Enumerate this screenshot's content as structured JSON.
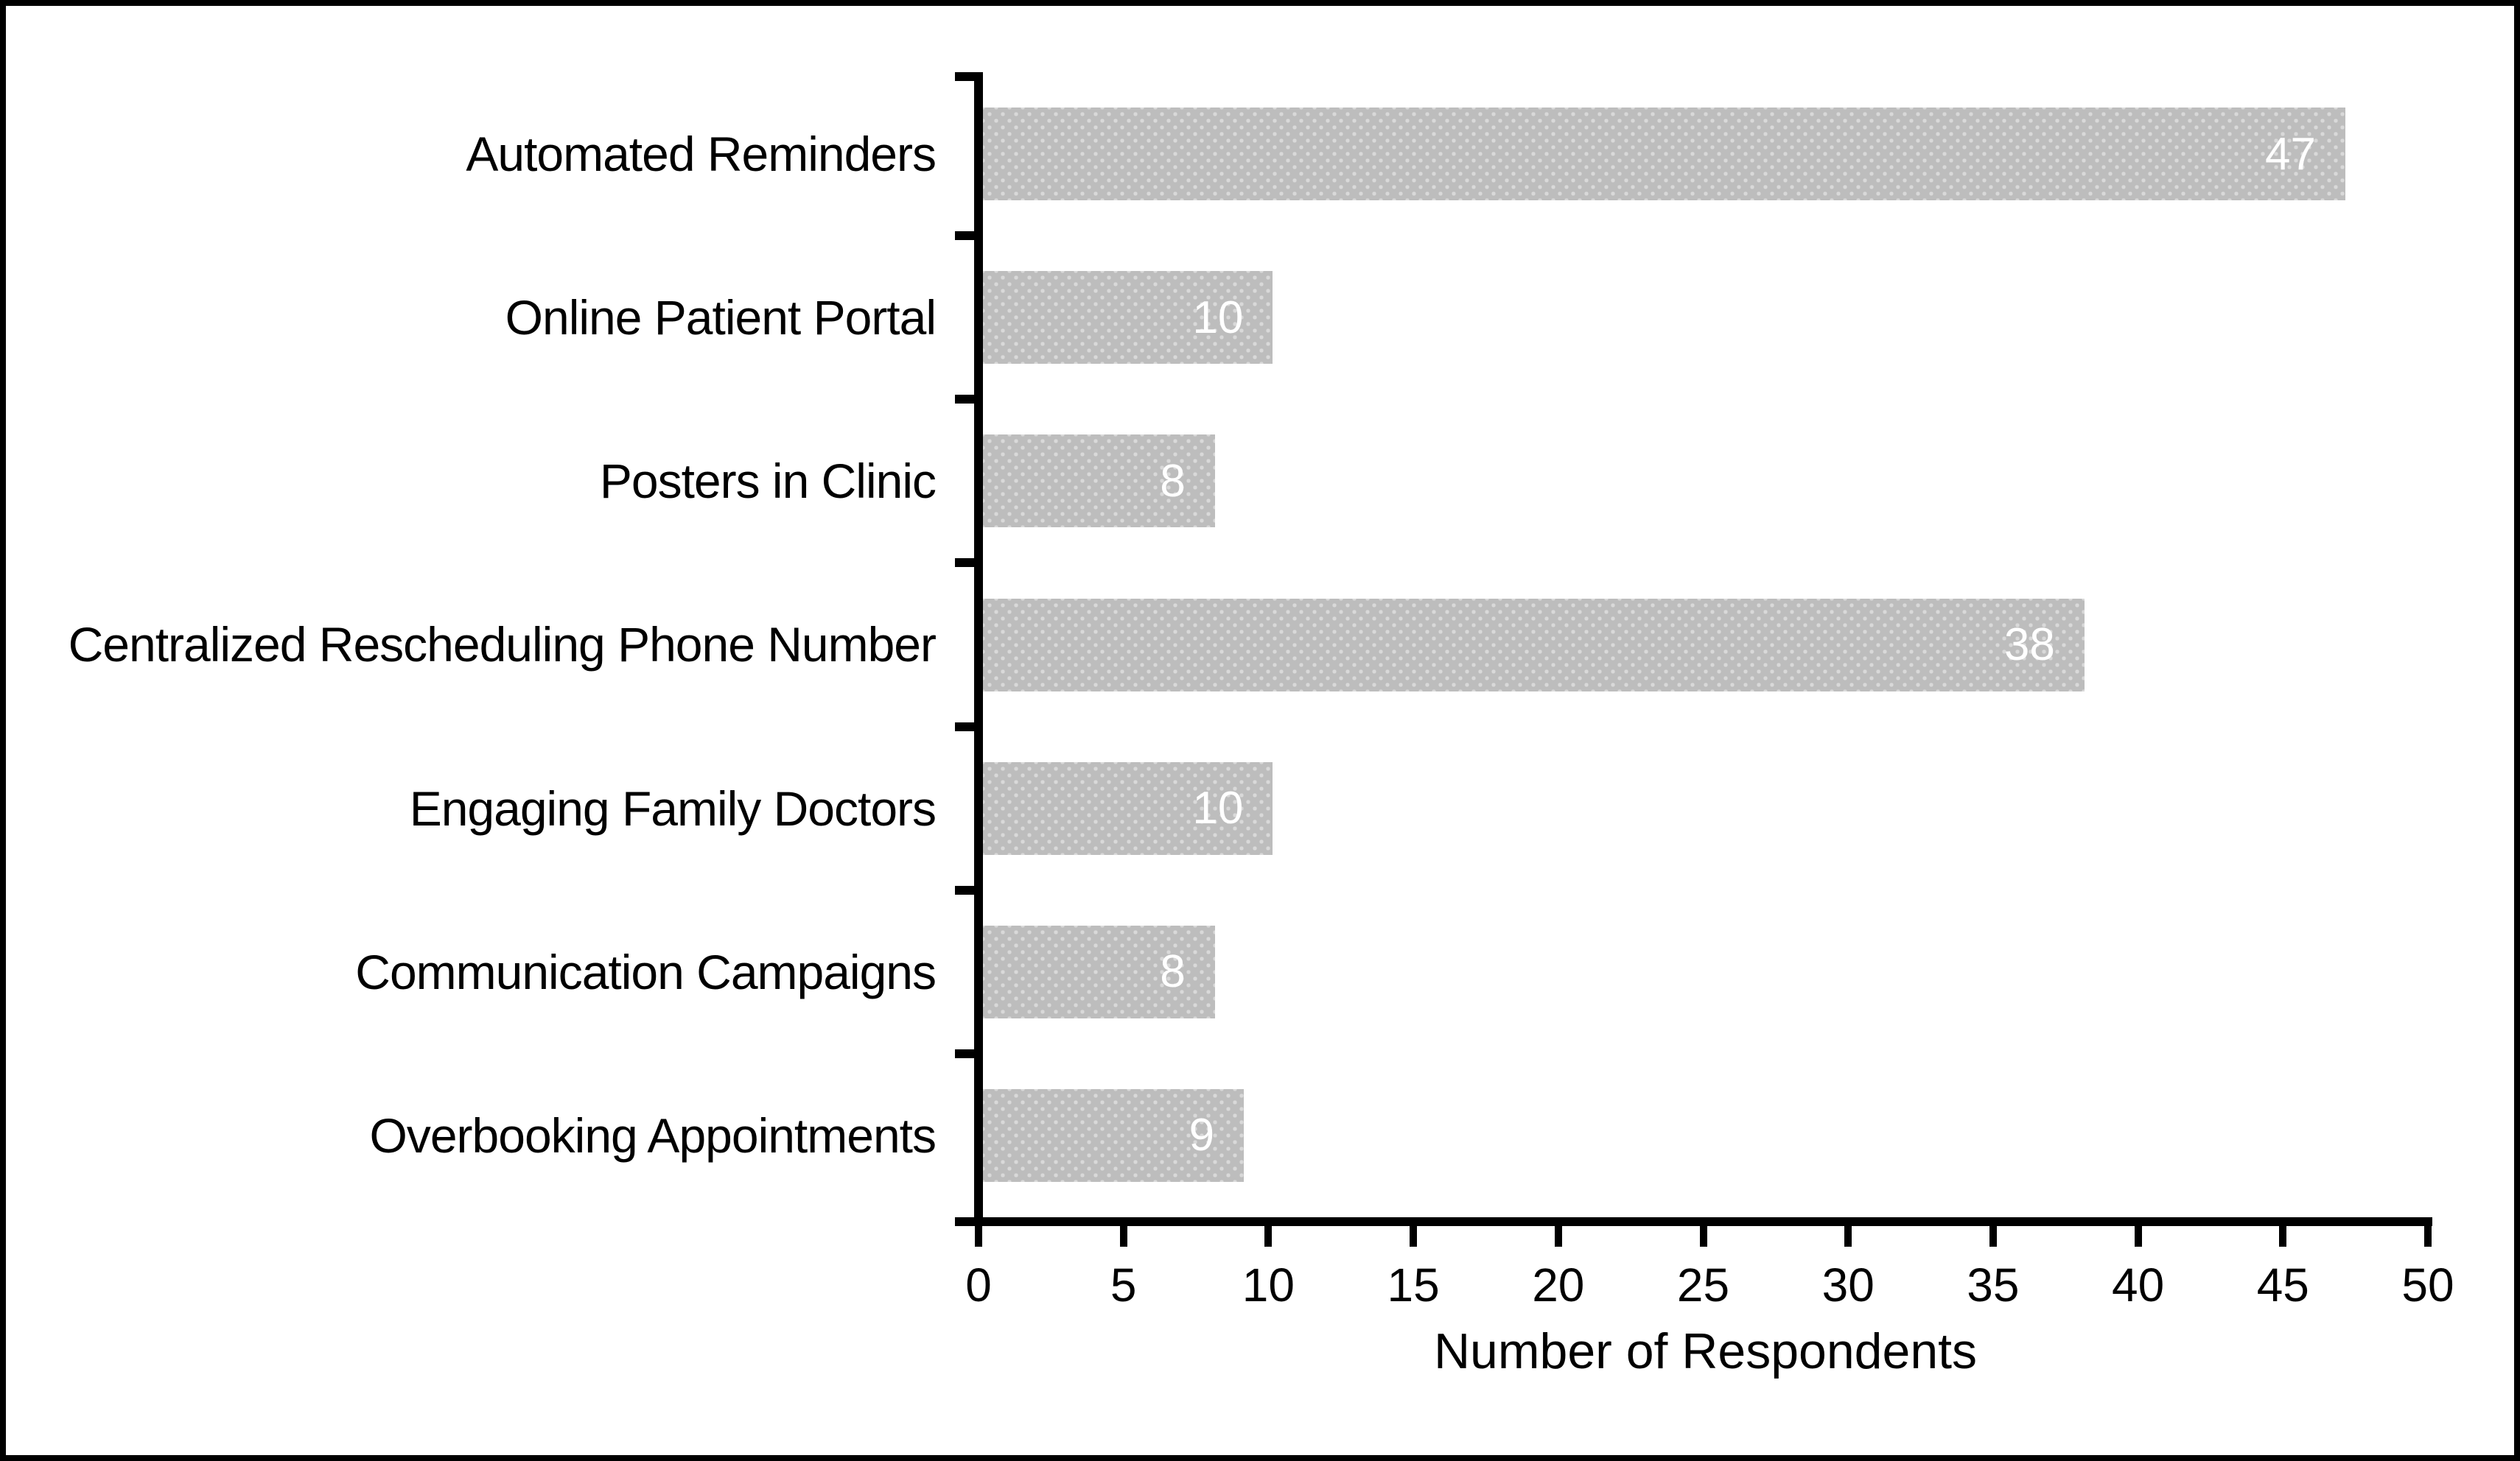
{
  "chart_data": {
    "type": "bar",
    "orientation": "horizontal",
    "title": "",
    "xlabel": "Number of Respondents",
    "ylabel": "",
    "categories": [
      "Automated Reminders",
      "Online Patient Portal",
      "Posters in Clinic",
      "Centralized Rescheduling Phone Number",
      "Engaging Family Doctors",
      "Communication Campaigns",
      "Overbooking Appointments"
    ],
    "values": [
      47,
      10,
      8,
      38,
      10,
      8,
      9
    ],
    "value_labels": [
      "47",
      "10",
      "8",
      "38",
      "10",
      "8",
      "9"
    ],
    "xlim": [
      0,
      50
    ],
    "xticks": [
      0,
      5,
      10,
      15,
      20,
      25,
      30,
      35,
      40,
      45,
      50
    ],
    "grid": false,
    "legend": "none",
    "value_labels_position": "inside-end"
  },
  "colors": {
    "background": "#ffffff",
    "outer_border": "#000000",
    "axis_line": "#000000",
    "label_text": "#000000",
    "bar_fill": "#bdbdbd",
    "bar_dot_pattern": "#d9d9d9",
    "bar_value_text": "#ffffff"
  }
}
